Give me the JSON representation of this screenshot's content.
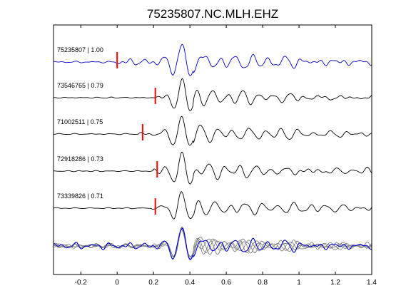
{
  "chart_data": {
    "type": "line",
    "title": "75235807.NC.MLH.EHZ",
    "xlabel": "",
    "ylabel": "",
    "xlim": [
      -0.35,
      1.4
    ],
    "x_ticks": [
      -0.2,
      0,
      0.2,
      0.4,
      0.6,
      0.8,
      1,
      1.2,
      1.4
    ],
    "x_tick_labels": [
      "-0.2",
      "0",
      "0.2",
      "0.4",
      "0.6",
      "0.8",
      "1",
      "1.2",
      "1.4"
    ],
    "grid": false,
    "colors": {
      "reference": "#0000cc",
      "trace": "#000000",
      "overlay": "#808080",
      "pick": "#ff0000"
    },
    "traces": [
      {
        "label": "75235807 | 1.00",
        "id": "75235807",
        "cc": 1.0,
        "pick_time": 0.0,
        "color": "#0000cc"
      },
      {
        "label": "73546765 | 0.79",
        "id": "73546765",
        "cc": 0.79,
        "pick_time": 0.21,
        "color": "#000000"
      },
      {
        "label": "71002511 | 0.75",
        "id": "71002511",
        "cc": 0.75,
        "pick_time": 0.14,
        "color": "#000000"
      },
      {
        "label": "72918286 | 0.73",
        "id": "72918286",
        "cc": 0.73,
        "pick_time": 0.22,
        "color": "#000000"
      },
      {
        "label": "73339826 | 0.71",
        "id": "73339826",
        "cc": 0.71,
        "pick_time": 0.21,
        "color": "#000000"
      }
    ]
  }
}
